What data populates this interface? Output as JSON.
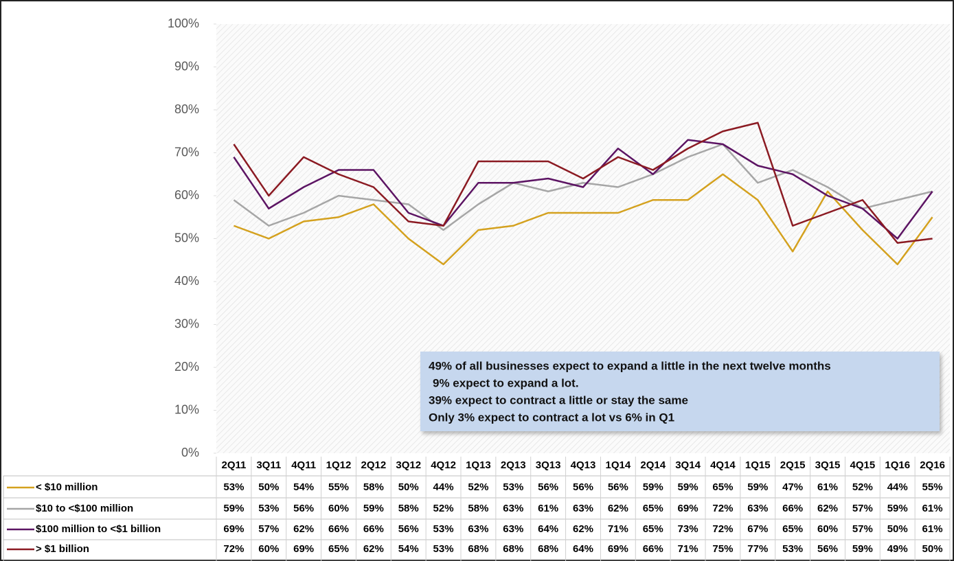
{
  "chart_data": {
    "type": "line",
    "categories": [
      "2Q11",
      "3Q11",
      "4Q11",
      "1Q12",
      "2Q12",
      "3Q12",
      "4Q12",
      "1Q13",
      "2Q13",
      "3Q13",
      "4Q13",
      "1Q14",
      "2Q14",
      "3Q14",
      "4Q14",
      "1Q15",
      "2Q15",
      "3Q15",
      "4Q15",
      "1Q16",
      "2Q16"
    ],
    "series": [
      {
        "name": "< $10 million",
        "color": "#d4a11e",
        "values": [
          53,
          50,
          54,
          55,
          58,
          50,
          44,
          52,
          53,
          56,
          56,
          56,
          59,
          59,
          65,
          59,
          47,
          61,
          52,
          44,
          55
        ],
        "value_labels": [
          "53%",
          "50%",
          "54%",
          "55%",
          "58%",
          "50%",
          "44%",
          "52%",
          "53%",
          "56%",
          "56%",
          "56%",
          "59%",
          "59%",
          "65%",
          "59%",
          "47%",
          "61%",
          "52%",
          "44%",
          "55%"
        ]
      },
      {
        "name": "$10 to <$100 million",
        "color": "#a6a6a6",
        "values": [
          59,
          53,
          56,
          60,
          59,
          58,
          52,
          58,
          63,
          61,
          63,
          62,
          65,
          69,
          72,
          63,
          66,
          62,
          57,
          59,
          61
        ],
        "value_labels": [
          "59%",
          "53%",
          "56%",
          "60%",
          "59%",
          "58%",
          "52%",
          "58%",
          "63%",
          "61%",
          "63%",
          "62%",
          "65%",
          "69%",
          "72%",
          "63%",
          "66%",
          "62%",
          "57%",
          "59%",
          "61%"
        ]
      },
      {
        "name": "$100 million to <$1 billion",
        "color": "#5c1463",
        "values": [
          69,
          57,
          62,
          66,
          66,
          56,
          53,
          63,
          63,
          64,
          62,
          71,
          65,
          73,
          72,
          67,
          65,
          60,
          57,
          50,
          61
        ],
        "value_labels": [
          "69%",
          "57%",
          "62%",
          "66%",
          "66%",
          "56%",
          "53%",
          "63%",
          "63%",
          "64%",
          "62%",
          "71%",
          "65%",
          "73%",
          "72%",
          "67%",
          "65%",
          "60%",
          "57%",
          "50%",
          "61%"
        ]
      },
      {
        "name": "> $1 billion",
        "color": "#8b1a22",
        "values": [
          72,
          60,
          69,
          65,
          62,
          54,
          53,
          68,
          68,
          68,
          64,
          69,
          66,
          71,
          75,
          77,
          53,
          56,
          59,
          49,
          50
        ],
        "value_labels": [
          "72%",
          "60%",
          "69%",
          "65%",
          "62%",
          "54%",
          "53%",
          "68%",
          "68%",
          "68%",
          "64%",
          "69%",
          "66%",
          "71%",
          "75%",
          "77%",
          "53%",
          "56%",
          "59%",
          "49%",
          "50%"
        ]
      }
    ],
    "ylim": [
      0,
      100
    ],
    "yticks": [
      {
        "value": 0,
        "label": "0%"
      },
      {
        "value": 10,
        "label": "10%"
      },
      {
        "value": 20,
        "label": "20%"
      },
      {
        "value": 30,
        "label": "30%"
      },
      {
        "value": 40,
        "label": "40%"
      },
      {
        "value": 50,
        "label": "50%"
      },
      {
        "value": 60,
        "label": "60%"
      },
      {
        "value": 70,
        "label": "70%"
      },
      {
        "value": 80,
        "label": "80%"
      },
      {
        "value": 90,
        "label": "90%"
      },
      {
        "value": 100,
        "label": "100%"
      }
    ],
    "annotation": [
      "49% of all businesses expect to expand a little in the next twelve months",
      "9% expect to expand a lot.",
      "39% expect to contract a little or stay the same",
      "Only 3% expect to contract a lot vs 6% in Q1"
    ]
  }
}
